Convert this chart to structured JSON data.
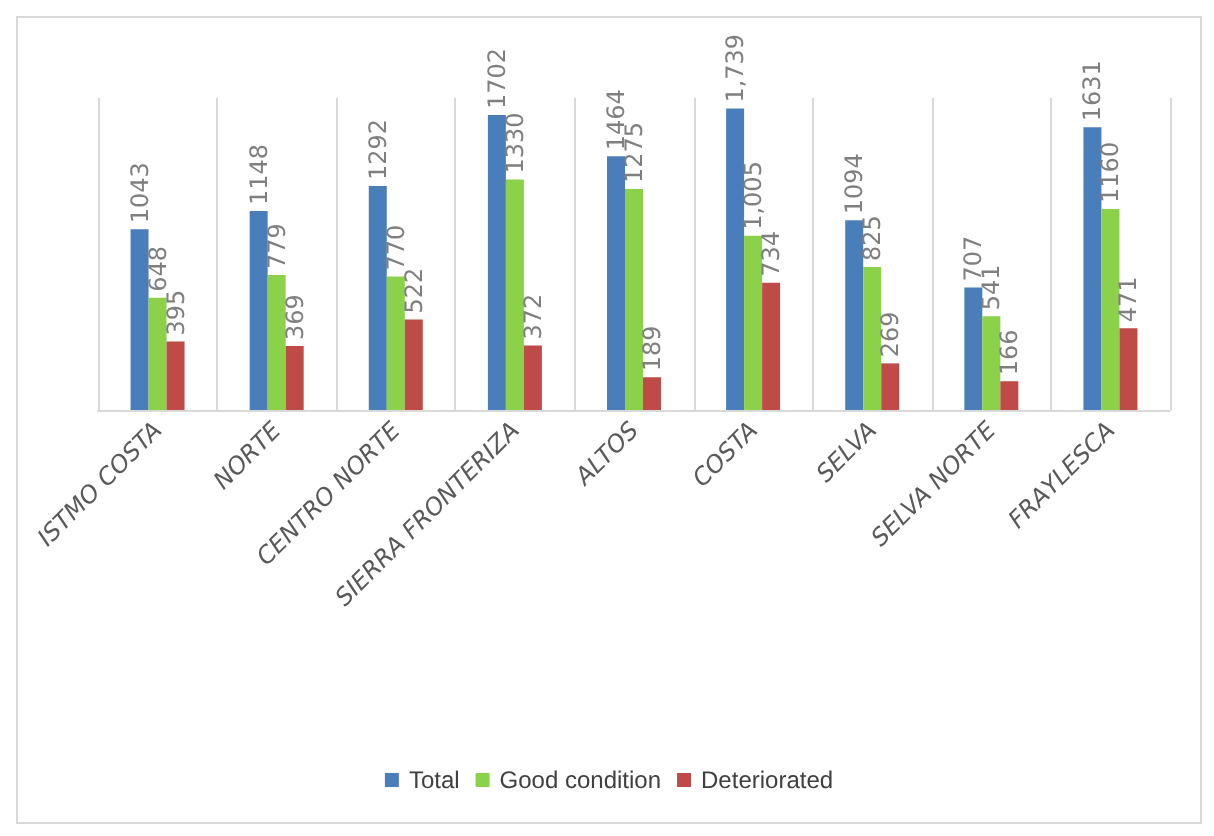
{
  "chart_data": {
    "type": "bar",
    "categories": [
      "ISTMO COSTA",
      "NORTE",
      "CENTRO NORTE",
      "SIERRA FRONTERIZA",
      "ALTOS",
      "COSTA",
      "SELVA",
      "SELVA NORTE",
      "FRAYLESCA"
    ],
    "series": [
      {
        "name": "Total",
        "color": "#4a7ebb",
        "values": [
          1043,
          1148,
          1292,
          1702,
          1464,
          1739,
          1094,
          707,
          1631
        ],
        "value_labels": [
          "1043",
          "1148",
          "1292",
          "1702",
          "1464",
          "1,739",
          "1094",
          "707",
          "1631"
        ]
      },
      {
        "name": "Good condition",
        "color": "#8cd14a",
        "values": [
          648,
          779,
          770,
          1330,
          1275,
          1005,
          825,
          541,
          1160
        ],
        "value_labels": [
          "648",
          "779",
          "770",
          "1330",
          "1275",
          "1,005",
          "825",
          "541",
          "1160"
        ]
      },
      {
        "name": "Deteriorated",
        "color": "#be4b48",
        "values": [
          395,
          369,
          522,
          372,
          189,
          734,
          269,
          166,
          471
        ],
        "value_labels": [
          "395",
          "369",
          "522",
          "372",
          "189",
          "734",
          "269",
          "166",
          "471"
        ]
      }
    ],
    "grid": "x",
    "legend": "bottom"
  }
}
